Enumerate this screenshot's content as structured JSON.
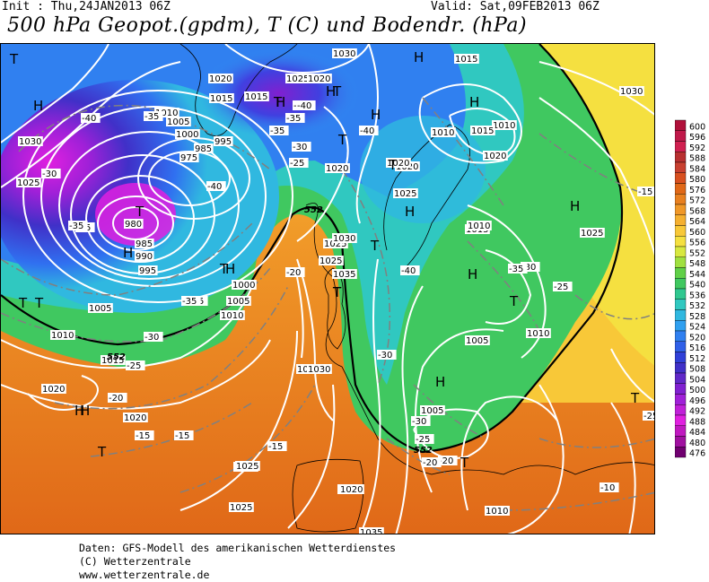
{
  "header": {
    "init": "Init : Thu,24JAN2013 06Z",
    "valid": "Valid: Sat,09FEB2013 06Z",
    "title": "500 hPa Geopot.(gpdm), T (C) und Bodendr. (hPa)"
  },
  "footer": {
    "line1": "Daten: GFS-Modell des amerikanischen Wetterdienstes",
    "line2": "(C) Wetterzentrale",
    "line3": "www.wetterzentrale.de"
  },
  "colors": {
    "c600": "#b0103a",
    "c596": "#c0194a",
    "c592": "#d02050",
    "c588": "#b83030",
    "c584": "#c84030",
    "c580": "#d85020",
    "c576": "#e06818",
    "c572": "#e88020",
    "c568": "#f09828",
    "c564": "#f5b030",
    "c560": "#f8c838",
    "c556": "#f5e040",
    "c552": "#d8e840",
    "c548": "#a0e040",
    "c544": "#60d048",
    "c540": "#40c860",
    "c536": "#30c890",
    "c532": "#30c8c0",
    "c528": "#30b8e0",
    "c524": "#30a0f0",
    "c520": "#3080f0",
    "c516": "#3060e8",
    "c512": "#3040d8",
    "c508": "#4030c8",
    "c504": "#6028c8",
    "c500": "#8020d0",
    "c496": "#a020d8",
    "c492": "#c020d8",
    "c488": "#e020e0",
    "c484": "#c018c0",
    "c480": "#a010a0",
    "c476": "#700070"
  },
  "scale": {
    "values": [
      "600",
      "596",
      "592",
      "588",
      "584",
      "580",
      "576",
      "572",
      "568",
      "564",
      "560",
      "556",
      "552",
      "548",
      "544",
      "540",
      "536",
      "532",
      "528",
      "524",
      "520",
      "516",
      "512",
      "508",
      "504",
      "500",
      "496",
      "492",
      "488",
      "484",
      "480",
      "476"
    ]
  },
  "pressure_labels": [
    {
      "t": "1030"
    },
    {
      "t": "1020"
    },
    {
      "t": "1025"
    },
    {
      "t": "1020"
    },
    {
      "t": "1015"
    },
    {
      "t": "1010"
    },
    {
      "t": "1005"
    },
    {
      "t": "1000"
    },
    {
      "t": "995"
    },
    {
      "t": "985"
    },
    {
      "t": "975"
    },
    {
      "t": "980"
    },
    {
      "t": "985"
    },
    {
      "t": "990"
    },
    {
      "t": "995"
    },
    {
      "t": "1030"
    },
    {
      "t": "1025"
    },
    {
      "t": "1000"
    },
    {
      "t": "1005"
    },
    {
      "t": "1010"
    },
    {
      "t": "1005"
    },
    {
      "t": "1010"
    },
    {
      "t": "1015"
    },
    {
      "t": "1020"
    },
    {
      "t": "1020"
    },
    {
      "t": "1025"
    },
    {
      "t": "1030"
    },
    {
      "t": "1035"
    },
    {
      "t": "1030"
    },
    {
      "t": "1025"
    },
    {
      "t": "1020"
    },
    {
      "t": "1015"
    },
    {
      "t": "1010"
    },
    {
      "t": "1015"
    },
    {
      "t": "1010"
    },
    {
      "t": "1015"
    },
    {
      "t": "1020"
    },
    {
      "t": "1025"
    },
    {
      "t": "1030"
    },
    {
      "t": "1015"
    },
    {
      "t": "1010"
    },
    {
      "t": "1010"
    },
    {
      "t": "1005"
    },
    {
      "t": "1005"
    },
    {
      "t": "1010"
    },
    {
      "t": "1025"
    },
    {
      "t": "1020"
    },
    {
      "t": "1020"
    },
    {
      "t": "1035"
    },
    {
      "t": "1025"
    },
    {
      "t": "1020"
    },
    {
      "t": "1030"
    },
    {
      "t": "1025"
    },
    {
      "t": "1010"
    },
    {
      "t": "1020"
    },
    {
      "t": "1025"
    },
    {
      "t": "1030"
    }
  ],
  "temp_labels": [
    {
      "t": "-40"
    },
    {
      "t": "-35"
    },
    {
      "t": "-40"
    },
    {
      "t": "-35"
    },
    {
      "t": "-30"
    },
    {
      "t": "-25"
    },
    {
      "t": "-35"
    },
    {
      "t": "-40"
    },
    {
      "t": "-35"
    },
    {
      "t": "-30"
    },
    {
      "t": "-25"
    },
    {
      "t": "-20"
    },
    {
      "t": "-35"
    },
    {
      "t": "-40"
    },
    {
      "t": "-35"
    },
    {
      "t": "-30"
    },
    {
      "t": "-25"
    },
    {
      "t": "-20"
    },
    {
      "t": "-15"
    },
    {
      "t": "-15"
    },
    {
      "t": "-15"
    },
    {
      "t": "-20"
    },
    {
      "t": "-25"
    },
    {
      "t": "-10"
    },
    {
      "t": "-15"
    },
    {
      "t": "-25"
    },
    {
      "t": "-30"
    },
    {
      "t": "-35"
    },
    {
      "t": "-40"
    },
    {
      "t": "-30"
    },
    {
      "t": "-25"
    },
    {
      "t": "-20"
    },
    {
      "t": "-35"
    },
    {
      "t": "-30"
    },
    {
      "t": "-40"
    }
  ],
  "gpdm_labels": [
    "552",
    "552",
    "552"
  ],
  "pressure_centers": [
    {
      "t": "T"
    },
    {
      "t": "H"
    },
    {
      "t": "T"
    },
    {
      "t": "H"
    },
    {
      "t": "T"
    },
    {
      "t": "H"
    },
    {
      "t": "T"
    },
    {
      "t": "H"
    },
    {
      "t": "T"
    },
    {
      "t": "T"
    },
    {
      "t": "H"
    },
    {
      "t": "T"
    },
    {
      "t": "H"
    },
    {
      "t": "H"
    },
    {
      "t": "T"
    },
    {
      "t": "H"
    },
    {
      "t": "T"
    },
    {
      "t": "T"
    },
    {
      "t": "H"
    },
    {
      "t": "T"
    },
    {
      "t": "H"
    },
    {
      "t": "T"
    },
    {
      "t": "H"
    },
    {
      "t": "T"
    },
    {
      "t": "T"
    },
    {
      "t": "H"
    },
    {
      "t": "H"
    },
    {
      "t": "T"
    },
    {
      "t": "H"
    },
    {
      "t": "T"
    }
  ]
}
